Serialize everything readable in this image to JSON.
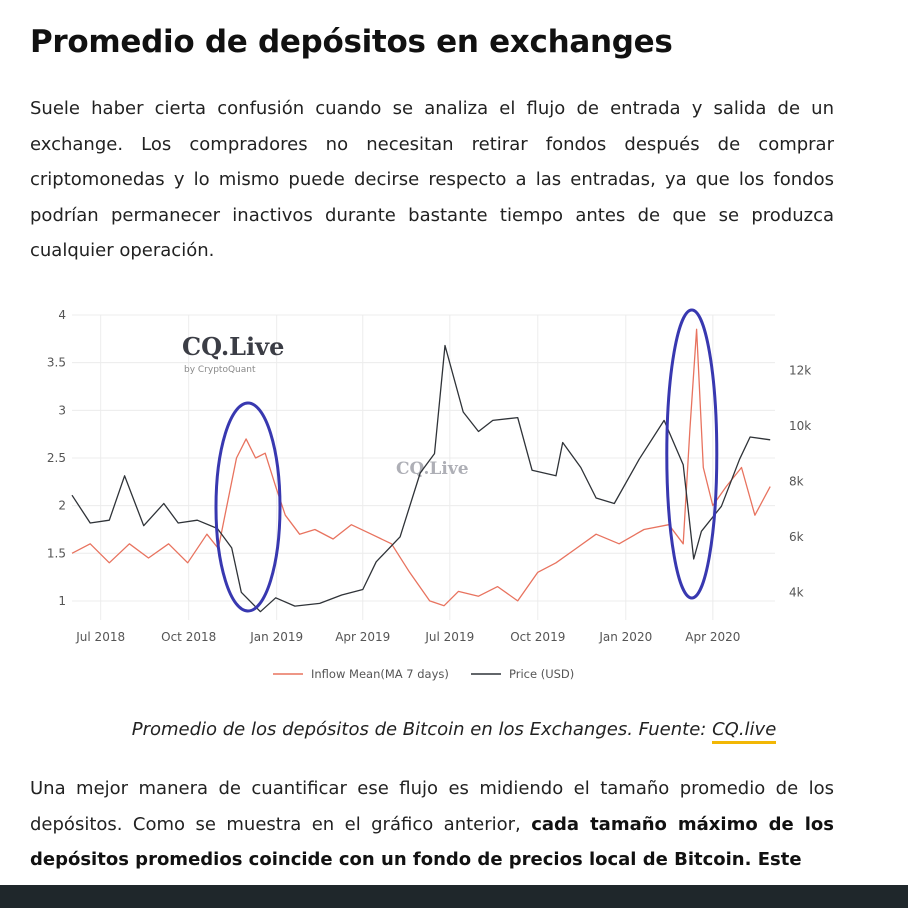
{
  "article": {
    "title": "Promedio de depósitos en exchanges",
    "paragraph1": "Suele haber cierta confusión cuando se analiza el flujo de entrada y salida de un exchange. Los compradores no necesitan retirar fondos después de comprar criptomonedas y lo mismo puede decirse respecto a las entradas, ya que los fondos podrían permanecer inactivos durante bastante tiempo antes de que se produzca cualquier operación.",
    "caption_text": "Promedio de los depósitos de Bitcoin en los Exchanges. Fuente: ",
    "caption_link": "CQ.live",
    "paragraph2_normal": "Una mejor manera de cuantificar ese flujo es midiendo el tamaño promedio de los depósitos. Como se muestra en el gráfico anterior, ",
    "paragraph2_bold": "cada tamaño máximo de los depósitos promedios coincide con un fondo de precios local de Bitcoin. Este"
  },
  "chart_data": {
    "type": "line",
    "watermark": {
      "brand": "CQ.Live",
      "sub": "by CryptoQuant",
      "center": "CQ.Live"
    },
    "x_ticks": [
      "Jul 2018",
      "Oct 2018",
      "Jan 2019",
      "Apr 2019",
      "Jul 2019",
      "Oct 2019",
      "Jan 2020",
      "Apr 2020"
    ],
    "y_left_ticks": [
      "1",
      "1.5",
      "2",
      "2.5",
      "3",
      "3.5",
      "4"
    ],
    "y_right_ticks": [
      "4k",
      "6k",
      "8k",
      "10k",
      "12k"
    ],
    "ylim_left": [
      0.8,
      4.0
    ],
    "ylim_right": [
      3000,
      14000
    ],
    "legend": [
      "Inflow Mean(MA 7 days)",
      "Price (USD)"
    ],
    "colors": {
      "inflow": "#e8735f",
      "price": "#2f3338",
      "ellipse": "#3838b0",
      "grid": "#ececec"
    },
    "highlight_periods": [
      "Dec 2018",
      "Mar 2020"
    ],
    "series": [
      {
        "name": "Inflow Mean(MA 7 days)",
        "points": [
          [
            "2018-06-01",
            1.5
          ],
          [
            "2018-06-20",
            1.6
          ],
          [
            "2018-07-10",
            1.4
          ],
          [
            "2018-07-31",
            1.6
          ],
          [
            "2018-08-20",
            1.45
          ],
          [
            "2018-09-10",
            1.6
          ],
          [
            "2018-09-30",
            1.4
          ],
          [
            "2018-10-20",
            1.7
          ],
          [
            "2018-11-01",
            1.55
          ],
          [
            "2018-11-10",
            2.0
          ],
          [
            "2018-11-20",
            2.5
          ],
          [
            "2018-11-30",
            2.7
          ],
          [
            "2018-12-10",
            2.5
          ],
          [
            "2018-12-20",
            2.55
          ],
          [
            "2018-12-31",
            2.2
          ],
          [
            "2019-01-10",
            1.9
          ],
          [
            "2019-01-25",
            1.7
          ],
          [
            "2019-02-10",
            1.75
          ],
          [
            "2019-03-01",
            1.65
          ],
          [
            "2019-03-20",
            1.8
          ],
          [
            "2019-04-10",
            1.7
          ],
          [
            "2019-05-01",
            1.6
          ],
          [
            "2019-05-20",
            1.3
          ],
          [
            "2019-06-10",
            1.0
          ],
          [
            "2019-06-25",
            0.95
          ],
          [
            "2019-07-10",
            1.1
          ],
          [
            "2019-07-31",
            1.05
          ],
          [
            "2019-08-20",
            1.15
          ],
          [
            "2019-09-10",
            1.0
          ],
          [
            "2019-10-01",
            1.3
          ],
          [
            "2019-10-20",
            1.4
          ],
          [
            "2019-11-10",
            1.55
          ],
          [
            "2019-12-01",
            1.7
          ],
          [
            "2019-12-25",
            1.6
          ],
          [
            "2020-01-20",
            1.75
          ],
          [
            "2020-02-15",
            1.8
          ],
          [
            "2020-03-01",
            1.6
          ],
          [
            "2020-03-08",
            2.8
          ],
          [
            "2020-03-15",
            3.85
          ],
          [
            "2020-03-22",
            2.4
          ],
          [
            "2020-04-01",
            2.0
          ],
          [
            "2020-04-15",
            2.2
          ],
          [
            "2020-05-01",
            2.4
          ],
          [
            "2020-05-15",
            1.9
          ],
          [
            "2020-05-31",
            2.2
          ]
        ]
      },
      {
        "name": "Price (USD)",
        "points": [
          [
            "2018-06-01",
            7500
          ],
          [
            "2018-06-20",
            6500
          ],
          [
            "2018-07-10",
            6600
          ],
          [
            "2018-07-26",
            8200
          ],
          [
            "2018-08-15",
            6400
          ],
          [
            "2018-09-05",
            7200
          ],
          [
            "2018-09-20",
            6500
          ],
          [
            "2018-10-10",
            6600
          ],
          [
            "2018-10-31",
            6300
          ],
          [
            "2018-11-15",
            5600
          ],
          [
            "2018-11-25",
            4000
          ],
          [
            "2018-12-15",
            3300
          ],
          [
            "2018-12-31",
            3800
          ],
          [
            "2019-01-20",
            3500
          ],
          [
            "2019-02-15",
            3600
          ],
          [
            "2019-03-10",
            3900
          ],
          [
            "2019-04-01",
            4100
          ],
          [
            "2019-04-15",
            5100
          ],
          [
            "2019-05-10",
            6000
          ],
          [
            "2019-05-31",
            8300
          ],
          [
            "2019-06-15",
            9000
          ],
          [
            "2019-06-26",
            12900
          ],
          [
            "2019-07-15",
            10500
          ],
          [
            "2019-07-31",
            9800
          ],
          [
            "2019-08-15",
            10200
          ],
          [
            "2019-09-10",
            10300
          ],
          [
            "2019-09-25",
            8400
          ],
          [
            "2019-10-20",
            8200
          ],
          [
            "2019-10-27",
            9400
          ],
          [
            "2019-11-15",
            8500
          ],
          [
            "2019-12-01",
            7400
          ],
          [
            "2019-12-20",
            7200
          ],
          [
            "2020-01-15",
            8800
          ],
          [
            "2020-02-10",
            10200
          ],
          [
            "2020-03-01",
            8600
          ],
          [
            "2020-03-12",
            5200
          ],
          [
            "2020-03-20",
            6200
          ],
          [
            "2020-04-10",
            7100
          ],
          [
            "2020-04-29",
            8800
          ],
          [
            "2020-05-10",
            9600
          ],
          [
            "2020-05-31",
            9500
          ]
        ]
      }
    ]
  }
}
